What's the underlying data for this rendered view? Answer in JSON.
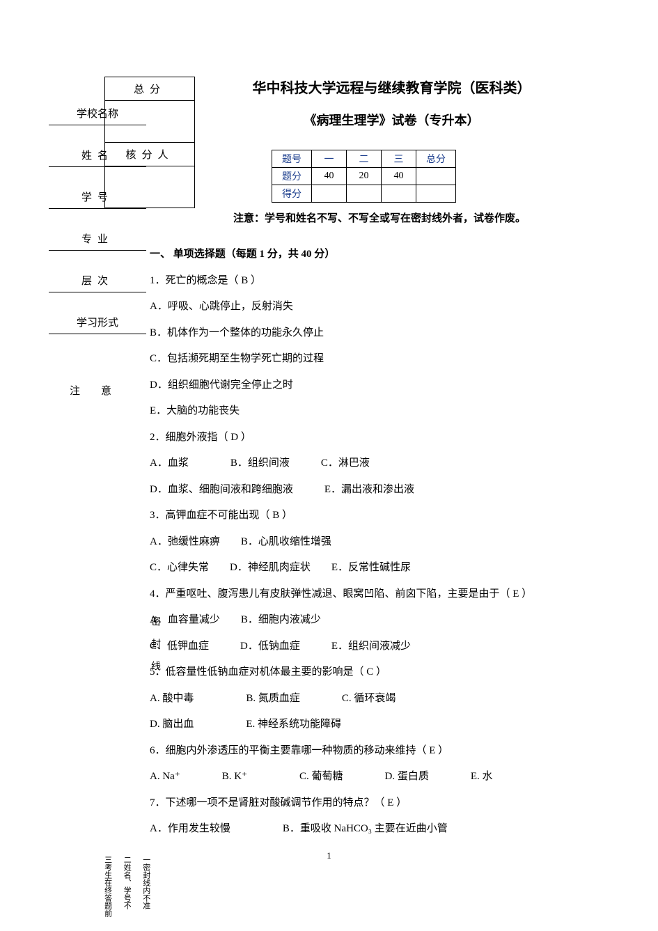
{
  "left": {
    "f1": "学校名称",
    "f2": "姓名",
    "f3": "学号",
    "f4": "专业",
    "f5": "层次",
    "f6": "学习形式",
    "notice": "注意"
  },
  "scorebox": {
    "r1": "总分",
    "r2": "核分人"
  },
  "title": "华中科技大学远程与继续教育学院（医科类）",
  "subtitle": "《病理生理学》试卷（专升本）",
  "qtable": {
    "h0": "题号",
    "h1": "一",
    "h2": "二",
    "h3": "三",
    "h4": "总分",
    "r1": "题分",
    "v1": "40",
    "v2": "20",
    "v3": "40",
    "r2": "得分"
  },
  "warn": "注意：学号和姓名不写、不写全或写在密封线外者，试卷作废。",
  "sec1": "一、 单项选择题（每题 1 分，共 40 分）",
  "q1": "1．死亡的概念是（ B ）",
  "q1a": "A．呼吸、心跳停止，反射消失",
  "q1b": "B．机体作为一个整体的功能永久停止",
  "q1c": "C．包括濒死期至生物学死亡期的过程",
  "q1d": "D．组织细胞代谢完全停止之时",
  "q1e": "E．大脑的功能丧失",
  "q2": "2．细胞外液指（ D ）",
  "q2row1": "A．血浆    B．组织间液   C．淋巴液",
  "q2row2": "D．血浆、细胞间液和跨细胞液   E．漏出液和渗出液",
  "q3": "3．高钾血症不可能出现（ B ）",
  "q3row1": "A．弛缓性麻痹  B．心肌收缩性增强",
  "q3row2": "C．心律失常  D．神经肌肉症状  E．反常性碱性尿",
  "q4": "4．严重呕吐、腹泻患儿有皮肤弹性减退、眼窝凹陷、前囟下陷，主要是由于（ E ）",
  "q4row1": "A．血容量减少  B．细胞内液减少",
  "q4row2": "C．低钾血症   D．低钠血症   E．组织间液减少",
  "q5": "5．低容量性低钠血症对机体最主要的影响是（ C ）",
  "q5row1": "A. 酸中毒     B. 氮质血症    C. 循环衰竭",
  "q5row2": "D. 脑出血     E. 神经系统功能障碍",
  "q6": "6．细胞内外渗透压的平衡主要靠哪一种物质的移动来维持（ E ）",
  "q6row": "A. Na⁺    B. K⁺     C. 葡萄糖    D. 蛋白质    E. 水",
  "q7": "7．下述哪一项不是肾脏对酸碱调节作用的特点？（ E ）",
  "q7row": "A．作用发生较慢     B．重吸收 NaHCO₃ 主要在近曲小管",
  "seal": "密封线",
  "pg": "1",
  "foot1": "三考生在终答题前",
  "foot2": "二姓名、学号不",
  "foot3": "一密封线内不准"
}
